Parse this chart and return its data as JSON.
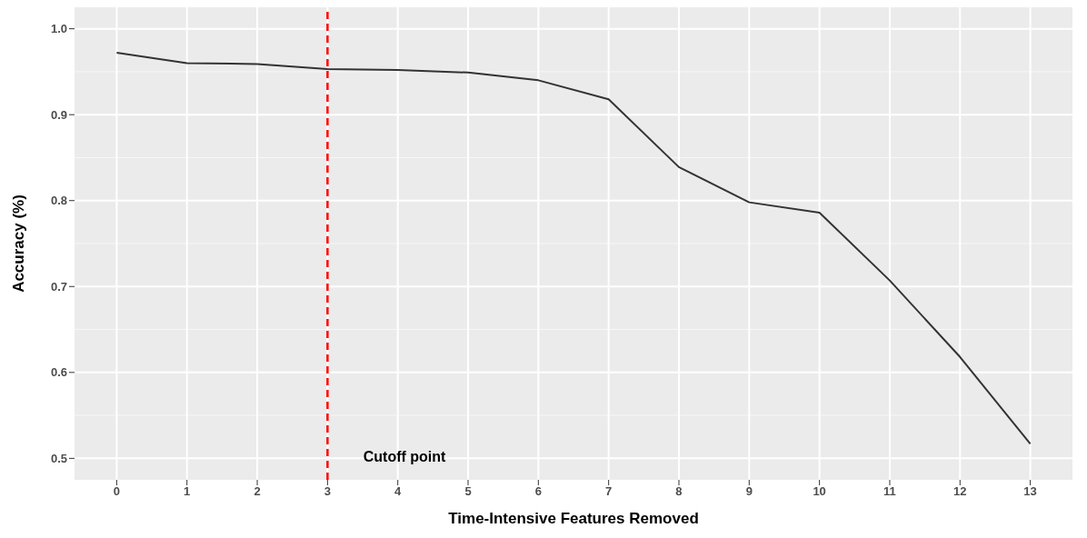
{
  "chart_data": {
    "type": "line",
    "xlabel": "Time-Intensive Features Removed",
    "ylabel": "Accuracy (%)",
    "x": [
      0,
      1,
      2,
      3,
      4,
      5,
      6,
      7,
      8,
      9,
      10,
      11,
      12,
      13
    ],
    "series": [
      {
        "color": "#333333",
        "values": [
          0.972,
          0.96,
          0.959,
          0.953,
          0.952,
          0.949,
          0.94,
          0.918,
          0.839,
          0.798,
          0.786,
          0.707,
          0.618,
          0.517
        ]
      }
    ],
    "xlim": [
      -0.6,
      13.6
    ],
    "xticks": [
      0,
      1,
      2,
      3,
      4,
      5,
      6,
      7,
      8,
      9,
      10,
      11,
      12,
      13
    ],
    "ylim": [
      0.475,
      1.025
    ],
    "yticks": [
      {
        "value": 0.5,
        "label": "0.5"
      },
      {
        "value": 0.6,
        "label": "0.6"
      },
      {
        "value": 0.7,
        "label": "0.7"
      },
      {
        "value": 0.8,
        "label": "0.8"
      },
      {
        "value": 0.9,
        "label": "0.9"
      },
      {
        "value": 1,
        "label": "1.0"
      }
    ],
    "grid": true,
    "marker": "none",
    "line_style": "solid",
    "legend": false,
    "ref_lines": [
      {
        "axis": "x",
        "value": 3,
        "label": "Cutoff point",
        "color": "#ff0000",
        "line_style": "dashed"
      }
    ]
  }
}
